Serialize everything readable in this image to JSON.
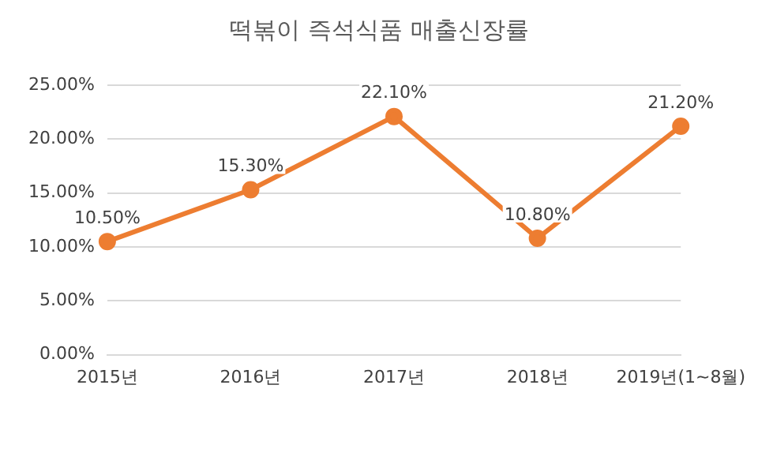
{
  "chart_data": {
    "type": "line",
    "title": "떡볶이 즉석식품 매출신장률",
    "categories": [
      "2015년",
      "2016년",
      "2017년",
      "2018년",
      "2019년(1~8월)"
    ],
    "series": [
      {
        "color": "#ed7d31",
        "values": [
          10.5,
          15.3,
          22.1,
          10.8,
          21.2
        ],
        "value_labels": [
          "10.50%",
          "15.30%",
          "22.10%",
          "10.80%",
          "21.20%"
        ]
      }
    ],
    "ylim": [
      0,
      25
    ],
    "yticks": [
      {
        "value": 0,
        "label": "0.00%"
      },
      {
        "value": 5,
        "label": "5.00%"
      },
      {
        "value": 10,
        "label": "10.00%"
      },
      {
        "value": 15,
        "label": "15.00%"
      },
      {
        "value": 20,
        "label": "20.00%"
      },
      {
        "value": 25,
        "label": "25.00%"
      }
    ],
    "grid": "y",
    "legend": false,
    "marker": "circle",
    "line_style": "solid"
  }
}
